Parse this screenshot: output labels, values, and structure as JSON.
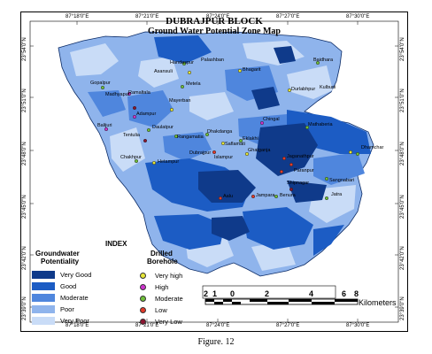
{
  "map": {
    "title": "DUBRAJPUR BLOCK",
    "subtitle": "Ground Water Potential Zone Map",
    "longitude_labels": [
      "87°18'0\"E",
      "87°21'0\"E",
      "87°24'0\"E",
      "87°27'0\"E",
      "87°30'0\"E"
    ],
    "latitude_labels": [
      "23°54'0\"N",
      "23°51'0\"N",
      "23°48'0\"N",
      "23°45'0\"N",
      "23°42'0\"N",
      "23°39'0\"N"
    ],
    "places": [
      "Handaspur",
      "Palashban",
      "Baidhara",
      "Asansuli",
      "Bhagarit",
      "Gopalpur",
      "Metela",
      "Durlabhpur",
      "Kulbuni",
      "Madhyapur",
      "Ramaltala",
      "Mayerban",
      "Adampur",
      "Chingal",
      "Mathaberia",
      "Balijuri",
      "Daulatpur",
      "Dhakdanga",
      "Eklakhi",
      "Tentulia",
      "Rangamatia",
      "Saflamati",
      "Ghatganja",
      "Dhamchar",
      "Chakhpur",
      "Hetampur",
      "Dubrajpur",
      "Islampur",
      "Jaganathpur",
      "Paranpur",
      "Shipnagar",
      "Sangnabari",
      "Aalu",
      "Jampara",
      "Benura",
      "Jatra"
    ]
  },
  "legend": {
    "index_title": "INDEX",
    "zones_heading": [
      "Groundwater",
      "Potentiality"
    ],
    "zones": [
      {
        "label": "Very Good",
        "color": "#0f3a8a"
      },
      {
        "label": "Good",
        "color": "#1c5cc4"
      },
      {
        "label": "Moderate",
        "color": "#4f86dd"
      },
      {
        "label": "Poor",
        "color": "#8fb4ec"
      },
      {
        "label": "Very Poor",
        "color": "#c9dcf7"
      }
    ],
    "borehole_heading": [
      "Drilled",
      "Borehole"
    ],
    "boreholes": [
      {
        "label": "Very high",
        "color": "#e6e638"
      },
      {
        "label": "High",
        "color": "#cc33cc"
      },
      {
        "label": "Moderate",
        "color": "#6fbf3a"
      },
      {
        "label": "Low",
        "color": "#e23a2a"
      },
      {
        "label": "Very Low",
        "color": "#8a1530"
      }
    ]
  },
  "scale_bar": {
    "numbers": [
      "2",
      "1",
      "0",
      "2",
      "4",
      "6",
      "8"
    ],
    "unit": "Kilometers"
  },
  "caption": "Figure. 12"
}
